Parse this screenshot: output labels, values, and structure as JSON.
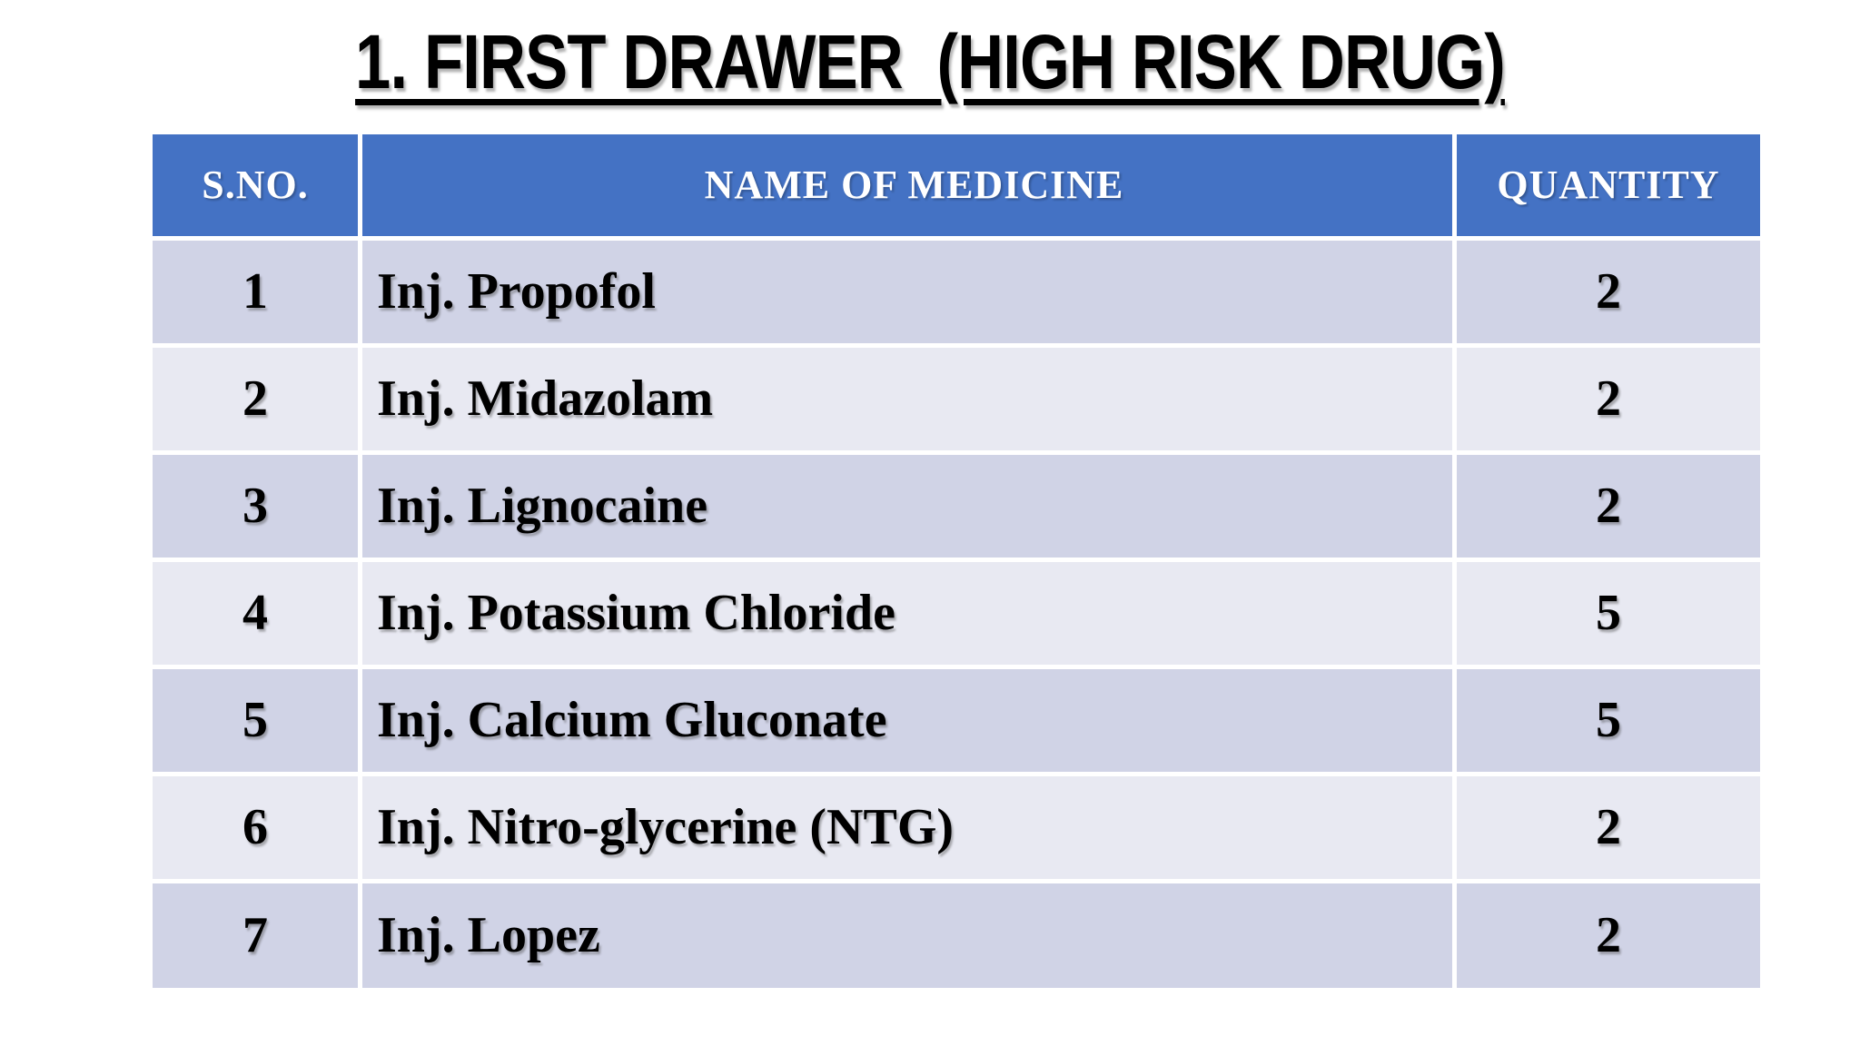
{
  "title": "1. FIRST DRAWER  (HIGH RISK DRUG)",
  "table": {
    "headers": [
      "S.NO.",
      "NAME OF MEDICINE",
      "QUANTITY"
    ],
    "rows": [
      {
        "sno": "1",
        "name": "Inj. Propofol",
        "qty": "2"
      },
      {
        "sno": "2",
        "name": "Inj. Midazolam",
        "qty": "2"
      },
      {
        "sno": "3",
        "name": "Inj. Lignocaine",
        "qty": "2"
      },
      {
        "sno": "4",
        "name": "Inj. Potassium Chloride",
        "qty": "5"
      },
      {
        "sno": "5",
        "name": "Inj. Calcium Gluconate",
        "qty": "5"
      },
      {
        "sno": "6",
        "name": "Inj. Nitro-glycerine (NTG)",
        "qty": "2"
      },
      {
        "sno": "7",
        "name": "Inj. Lopez",
        "qty": "2"
      }
    ]
  },
  "colors": {
    "header_bg": "#4472C4",
    "header_text": "#FFFFFF",
    "row_band_dark": "#D0D3E6",
    "row_band_light": "#E8E9F2",
    "grid_line": "#FFFFFF",
    "body_text": "#000000",
    "title_text": "#000000",
    "page_bg": "#FFFFFF"
  }
}
